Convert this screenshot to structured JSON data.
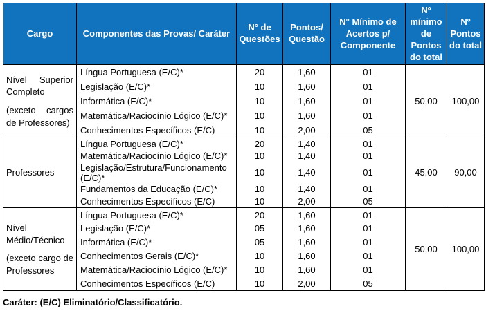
{
  "colors": {
    "header_bg": "#1173BD",
    "header_text": "#FFFFFF",
    "border": "#000000",
    "body_text": "#000000"
  },
  "table": {
    "headers": [
      "Cargo",
      "Componentes das Provas/ Caráter",
      "N° de Questões",
      "Pontos/ Questão",
      "N° Mínimo de Acertos p/ Componente",
      "Nº mínimo de Pontos do total",
      "Nº Pontos do total"
    ],
    "groups": [
      {
        "cargo": [
          "Nível Superior Completo",
          "(exceto cargos de Professores)"
        ],
        "min_points_total": "50,00",
        "points_total": "100,00",
        "rows": [
          {
            "component": "Língua Portuguesa (E/C)*",
            "questions": "20",
            "points_per_question": "1,60",
            "min_correct": "01"
          },
          {
            "component": "Legislação (E/C)*",
            "questions": "10",
            "points_per_question": "1,60",
            "min_correct": "01"
          },
          {
            "component": "Informática (E/C)*",
            "questions": "10",
            "points_per_question": "1,60",
            "min_correct": "01"
          },
          {
            "component": "Matemática/Raciocínio Lógico (E/C)*",
            "questions": "10",
            "points_per_question": "1,60",
            "min_correct": "01"
          },
          {
            "component": "Conhecimentos Específicos (E/C)",
            "questions": "10",
            "points_per_question": "2,00",
            "min_correct": "05"
          }
        ]
      },
      {
        "cargo": [
          "Professores"
        ],
        "min_points_total": "45,00",
        "points_total": "90,00",
        "rows": [
          {
            "component": "Língua Portuguesa (E/C)*",
            "questions": "20",
            "points_per_question": "1,40",
            "min_correct": "01"
          },
          {
            "component": "Matemática/Raciocínio Lógico (E/C)*",
            "questions": "10",
            "points_per_question": "1,40",
            "min_correct": "01"
          },
          {
            "component": "Legislação/Estrutura/Funcionamento (E/C)*",
            "questions": "10",
            "points_per_question": "1,40",
            "min_correct": "01"
          },
          {
            "component": "Fundamentos da Educação (E/C)*",
            "questions": "10",
            "points_per_question": "1,40",
            "min_correct": "01"
          },
          {
            "component": "Conhecimentos Específicos (E/C)",
            "questions": "10",
            "points_per_question": "2,00",
            "min_correct": "05"
          }
        ]
      },
      {
        "cargo": [
          "Nível Médio/Técnico",
          "(exceto cargo de Professores"
        ],
        "min_points_total": "50,00",
        "points_total": "100,00",
        "rows": [
          {
            "component": "Língua Portuguesa (E/C)*",
            "questions": "20",
            "points_per_question": "1,60",
            "min_correct": "01"
          },
          {
            "component": "Legislação (E/C)*",
            "questions": "05",
            "points_per_question": "1,60",
            "min_correct": "01"
          },
          {
            "component": "Informática (E/C)*",
            "questions": "05",
            "points_per_question": "1,60",
            "min_correct": "01"
          },
          {
            "component": "Conhecimentos Gerais (E/C)*",
            "questions": "10",
            "points_per_question": "1,60",
            "min_correct": "01"
          },
          {
            "component": "Matemática/Raciocínio Lógico (E/C)*",
            "questions": "10",
            "points_per_question": "1,60",
            "min_correct": "01"
          },
          {
            "component": "Conhecimentos Específicos (E/C)",
            "questions": "10",
            "points_per_question": "2,00",
            "min_correct": "05"
          }
        ]
      }
    ]
  },
  "footnote": "Caráter: (E/C) Eliminatório/Classificatório."
}
